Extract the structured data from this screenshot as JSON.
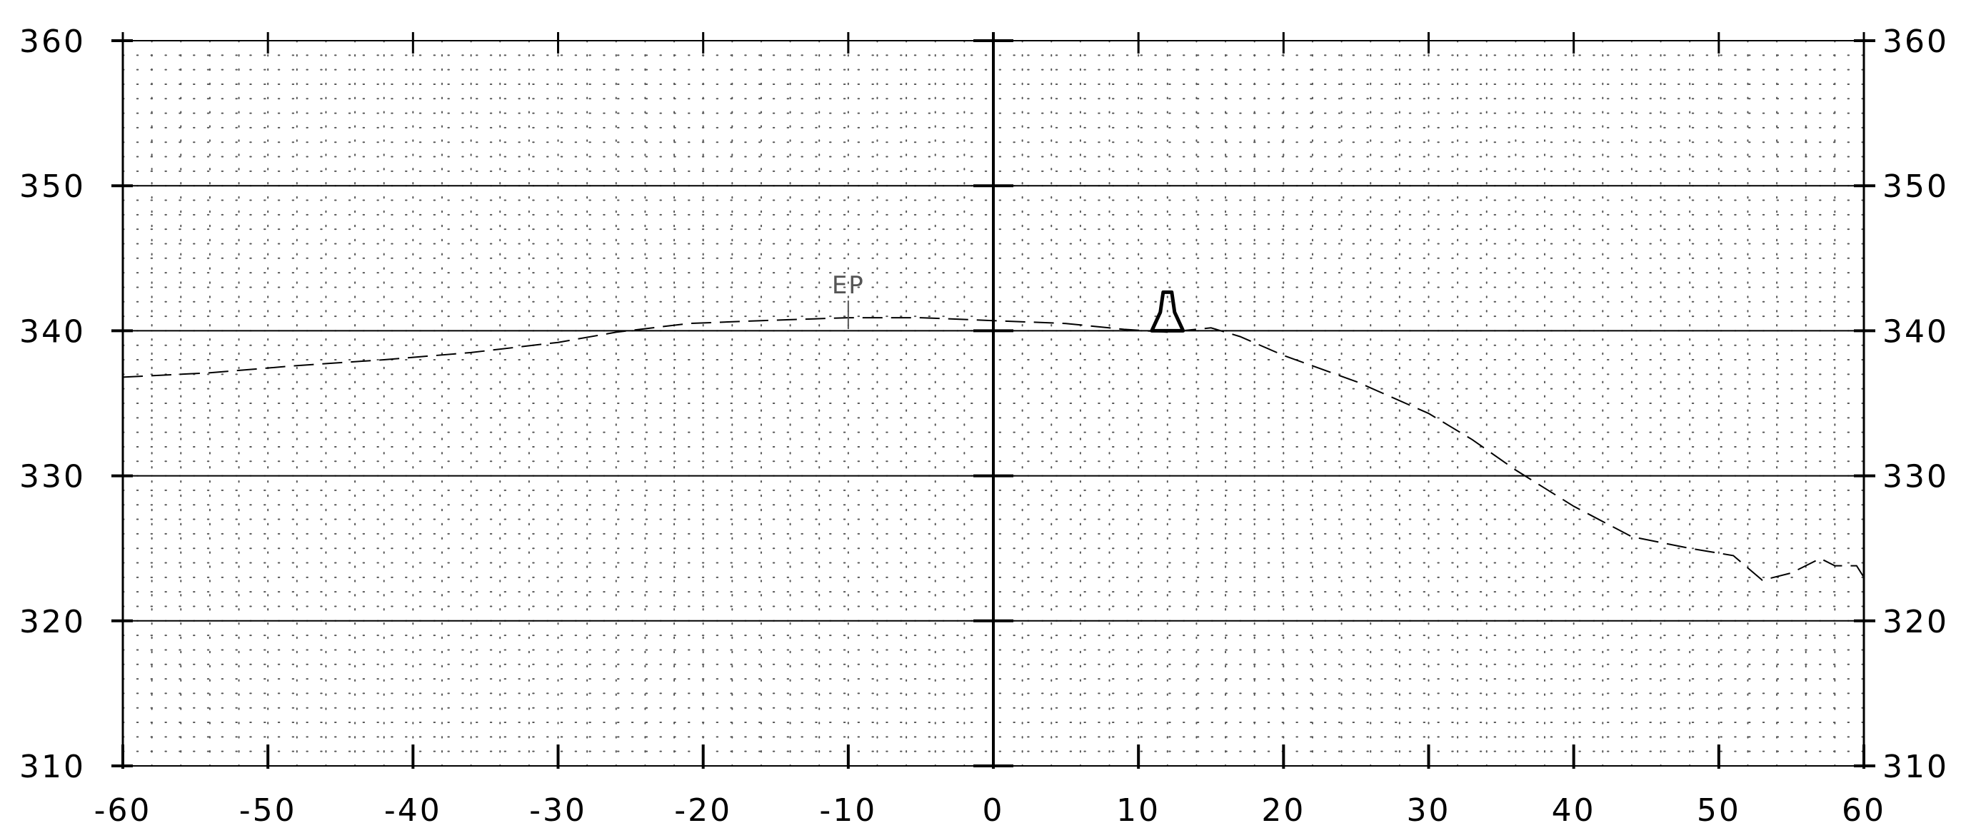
{
  "chart_data": {
    "type": "line",
    "title": "",
    "xlabel": "",
    "ylabel": "",
    "xlim": [
      -60,
      60
    ],
    "ylim": [
      310,
      360
    ],
    "grid": true,
    "x_ticks": [
      -60,
      -50,
      -40,
      -30,
      -20,
      -10,
      0,
      10,
      20,
      30,
      40,
      50,
      60
    ],
    "x_tick_labels": [
      "-60",
      "-50",
      "-40",
      "-30",
      "-20",
      "-10",
      "0",
      "10",
      "20",
      "30",
      "40",
      "50",
      "60"
    ],
    "y_ticks": [
      310,
      320,
      330,
      340,
      350,
      360
    ],
    "y_tick_labels": [
      "310",
      "320",
      "330",
      "340",
      "350",
      "360"
    ],
    "series": [
      {
        "style": "dashed",
        "color": "#000000",
        "points": [
          [
            -60,
            336.8
          ],
          [
            -54,
            337.1
          ],
          [
            -48,
            337.6
          ],
          [
            -42,
            338.0
          ],
          [
            -36,
            338.5
          ],
          [
            -30,
            339.2
          ],
          [
            -26,
            339.9
          ],
          [
            -21,
            340.5
          ],
          [
            -16,
            340.7
          ],
          [
            -10,
            340.9
          ],
          [
            -5,
            340.9
          ],
          [
            0,
            340.7
          ],
          [
            5,
            340.5
          ],
          [
            9,
            340.1
          ],
          [
            12,
            339.9
          ],
          [
            15,
            340.2
          ],
          [
            17,
            339.6
          ],
          [
            20,
            338.3
          ],
          [
            25,
            336.5
          ],
          [
            30,
            334.3
          ],
          [
            33,
            332.5
          ],
          [
            36,
            330.4
          ],
          [
            40,
            327.9
          ],
          [
            44,
            325.8
          ],
          [
            48,
            325.0
          ],
          [
            51,
            324.5
          ],
          [
            53,
            322.8
          ],
          [
            55,
            323.3
          ],
          [
            57,
            324.3
          ],
          [
            58,
            323.8
          ],
          [
            59.5,
            323.8
          ],
          [
            60,
            323.0
          ]
        ]
      }
    ],
    "annotations": [
      {
        "text": "EP",
        "x": -10,
        "y": 341.1
      }
    ],
    "markers": [
      {
        "shape": "curb",
        "x": 12,
        "y": 340
      }
    ]
  }
}
